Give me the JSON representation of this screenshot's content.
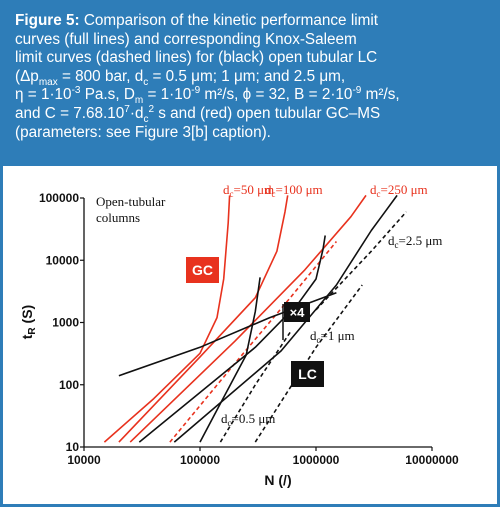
{
  "caption": {
    "label": "Figure 5:",
    "line1": "Comparison of the kinetic performance limit",
    "line2": "curves (full lines) and corresponding Knox-Saleem",
    "line3": "limit curves (dashed lines) for (black) open tubular LC",
    "l4_a": "(Δp",
    "l4_sub": "max",
    "l4_b": " = 800 bar, d",
    "l4_sub2": "c",
    "l4_c": " = 0.5 μm; 1 μm; and 2.5 μm,",
    "l5_a": "η = 1·10",
    "l5_sup": "-3",
    "l5_b": " Pa.s, D",
    "l5_sub": "m",
    "l5_c": " = 1·10",
    "l5_sup2": "-9",
    "l5_d": " m²/s, ϕ = 32, B = 2·10",
    "l5_sup3": "-9",
    "l5_e": " m²/s,",
    "l6_a": "and C = 7.68.10",
    "l6_sup": "7",
    "l6_b": "·d",
    "l6_sub": "c",
    "l6_sup2": "2",
    "l6_c": " s and (red) open tubular GC–MS",
    "line7": "(parameters: see Figure 3[b] caption)."
  },
  "chart_data": {
    "type": "line",
    "xlabel": "N (/)",
    "ylabel": "t_R (S)",
    "ylabel_main": "t",
    "ylabel_sub": "R",
    "ylabel_rest": " (S)",
    "xscale": "log",
    "yscale": "log",
    "xlim": [
      10000,
      10000000
    ],
    "ylim": [
      10,
      100000
    ],
    "x_ticks": [
      10000,
      100000,
      1000000,
      10000000
    ],
    "x_tick_labels": [
      "10000",
      "100000",
      "1000000",
      "10000000"
    ],
    "y_ticks": [
      10,
      100,
      1000,
      10000,
      100000
    ],
    "y_tick_labels": [
      "10",
      "100",
      "1000",
      "10000",
      "100000"
    ],
    "colors": {
      "lc": "#111111",
      "gc": "#e8321e",
      "caption_bg": "#2e7db8"
    },
    "series": [
      {
        "group": "GC",
        "style": "solid",
        "color": "#e8321e",
        "x": [
          15000,
          40000,
          100000,
          140000,
          160000,
          175000,
          180000
        ],
        "y": [
          12,
          60,
          320,
          1200,
          5000,
          40000,
          110000
        ]
      },
      {
        "group": "GC",
        "style": "solid",
        "color": "#e8321e",
        "x": [
          20000,
          100000,
          300000,
          460000,
          540000,
          570000
        ],
        "y": [
          12,
          280,
          2500,
          14000,
          60000,
          110000
        ]
      },
      {
        "group": "GC",
        "style": "solid",
        "color": "#e8321e",
        "x": [
          25000,
          200000,
          800000,
          2000000,
          2700000
        ],
        "y": [
          12,
          500,
          7000,
          50000,
          110000
        ]
      },
      {
        "group": "GC",
        "style": "dashed",
        "color": "#e8321e",
        "x": [
          55000,
          200000,
          600000,
          1500000
        ],
        "y": [
          12,
          220,
          2500,
          20000
        ]
      },
      {
        "group": "LC",
        "style": "solid",
        "color": "#111111",
        "x": [
          20000,
          100000,
          400000,
          1500000
        ],
        "y": [
          140,
          400,
          1200,
          3000
        ]
      },
      {
        "group": "LC",
        "style": "solid",
        "color": "#111111",
        "x": [
          100000,
          150000,
          250000,
          300000,
          330000
        ],
        "y": [
          12,
          50,
          300,
          1500,
          5300
        ]
      },
      {
        "group": "LC",
        "style": "solid",
        "color": "#111111",
        "x": [
          30000,
          300000,
          700000,
          1000000,
          1150000,
          1200000
        ],
        "y": [
          12,
          400,
          2000,
          5000,
          15000,
          25000
        ]
      },
      {
        "group": "LC",
        "style": "solid",
        "color": "#111111",
        "x": [
          60000,
          500000,
          1500000,
          3000000,
          5000000
        ],
        "y": [
          12,
          350,
          4000,
          30000,
          110000
        ]
      },
      {
        "group": "LC",
        "style": "dashed",
        "color": "#111111",
        "x": [
          150000,
          300000,
          600000
        ],
        "y": [
          12,
          100,
          700
        ]
      },
      {
        "group": "LC",
        "style": "dashed",
        "color": "#111111",
        "x": [
          300000,
          1000000,
          2500000
        ],
        "y": [
          12,
          400,
          4000
        ]
      },
      {
        "group": "LC",
        "style": "dashed",
        "color": "#111111",
        "x": [
          1000000,
          3000000,
          6000000
        ],
        "y": [
          1600,
          14000,
          60000
        ]
      }
    ],
    "annotations": {
      "columns_line1": "Open-tubular",
      "columns_line2": "columns",
      "gc_badge": "GC",
      "lc_badge": "LC",
      "x4_badge": "×4",
      "d_main": "d",
      "d_sub": "c",
      "gc_dc50": "=50 μm",
      "gc_dc100": "=100 μm",
      "gc_dc250": "=250 μm",
      "lc_dc25": "=2.5 μm",
      "lc_dc1": "=1 μm",
      "lc_dc05": "=0.5 μm"
    }
  }
}
